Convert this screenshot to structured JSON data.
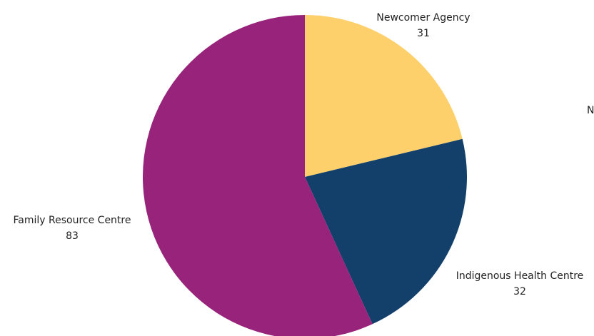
{
  "chart_data": {
    "type": "pie",
    "title": "",
    "start_angle_deg": 0,
    "direction": "clockwise",
    "slices": [
      {
        "label": "Newcomer Agency",
        "value": 31,
        "color": "#FED06B"
      },
      {
        "label": "Indigenous Health Centre",
        "value": 32,
        "color": "#13406B"
      },
      {
        "label": "Family Resource Centre",
        "value": 83,
        "color": "#98237A"
      }
    ],
    "clipped_label": "N"
  }
}
